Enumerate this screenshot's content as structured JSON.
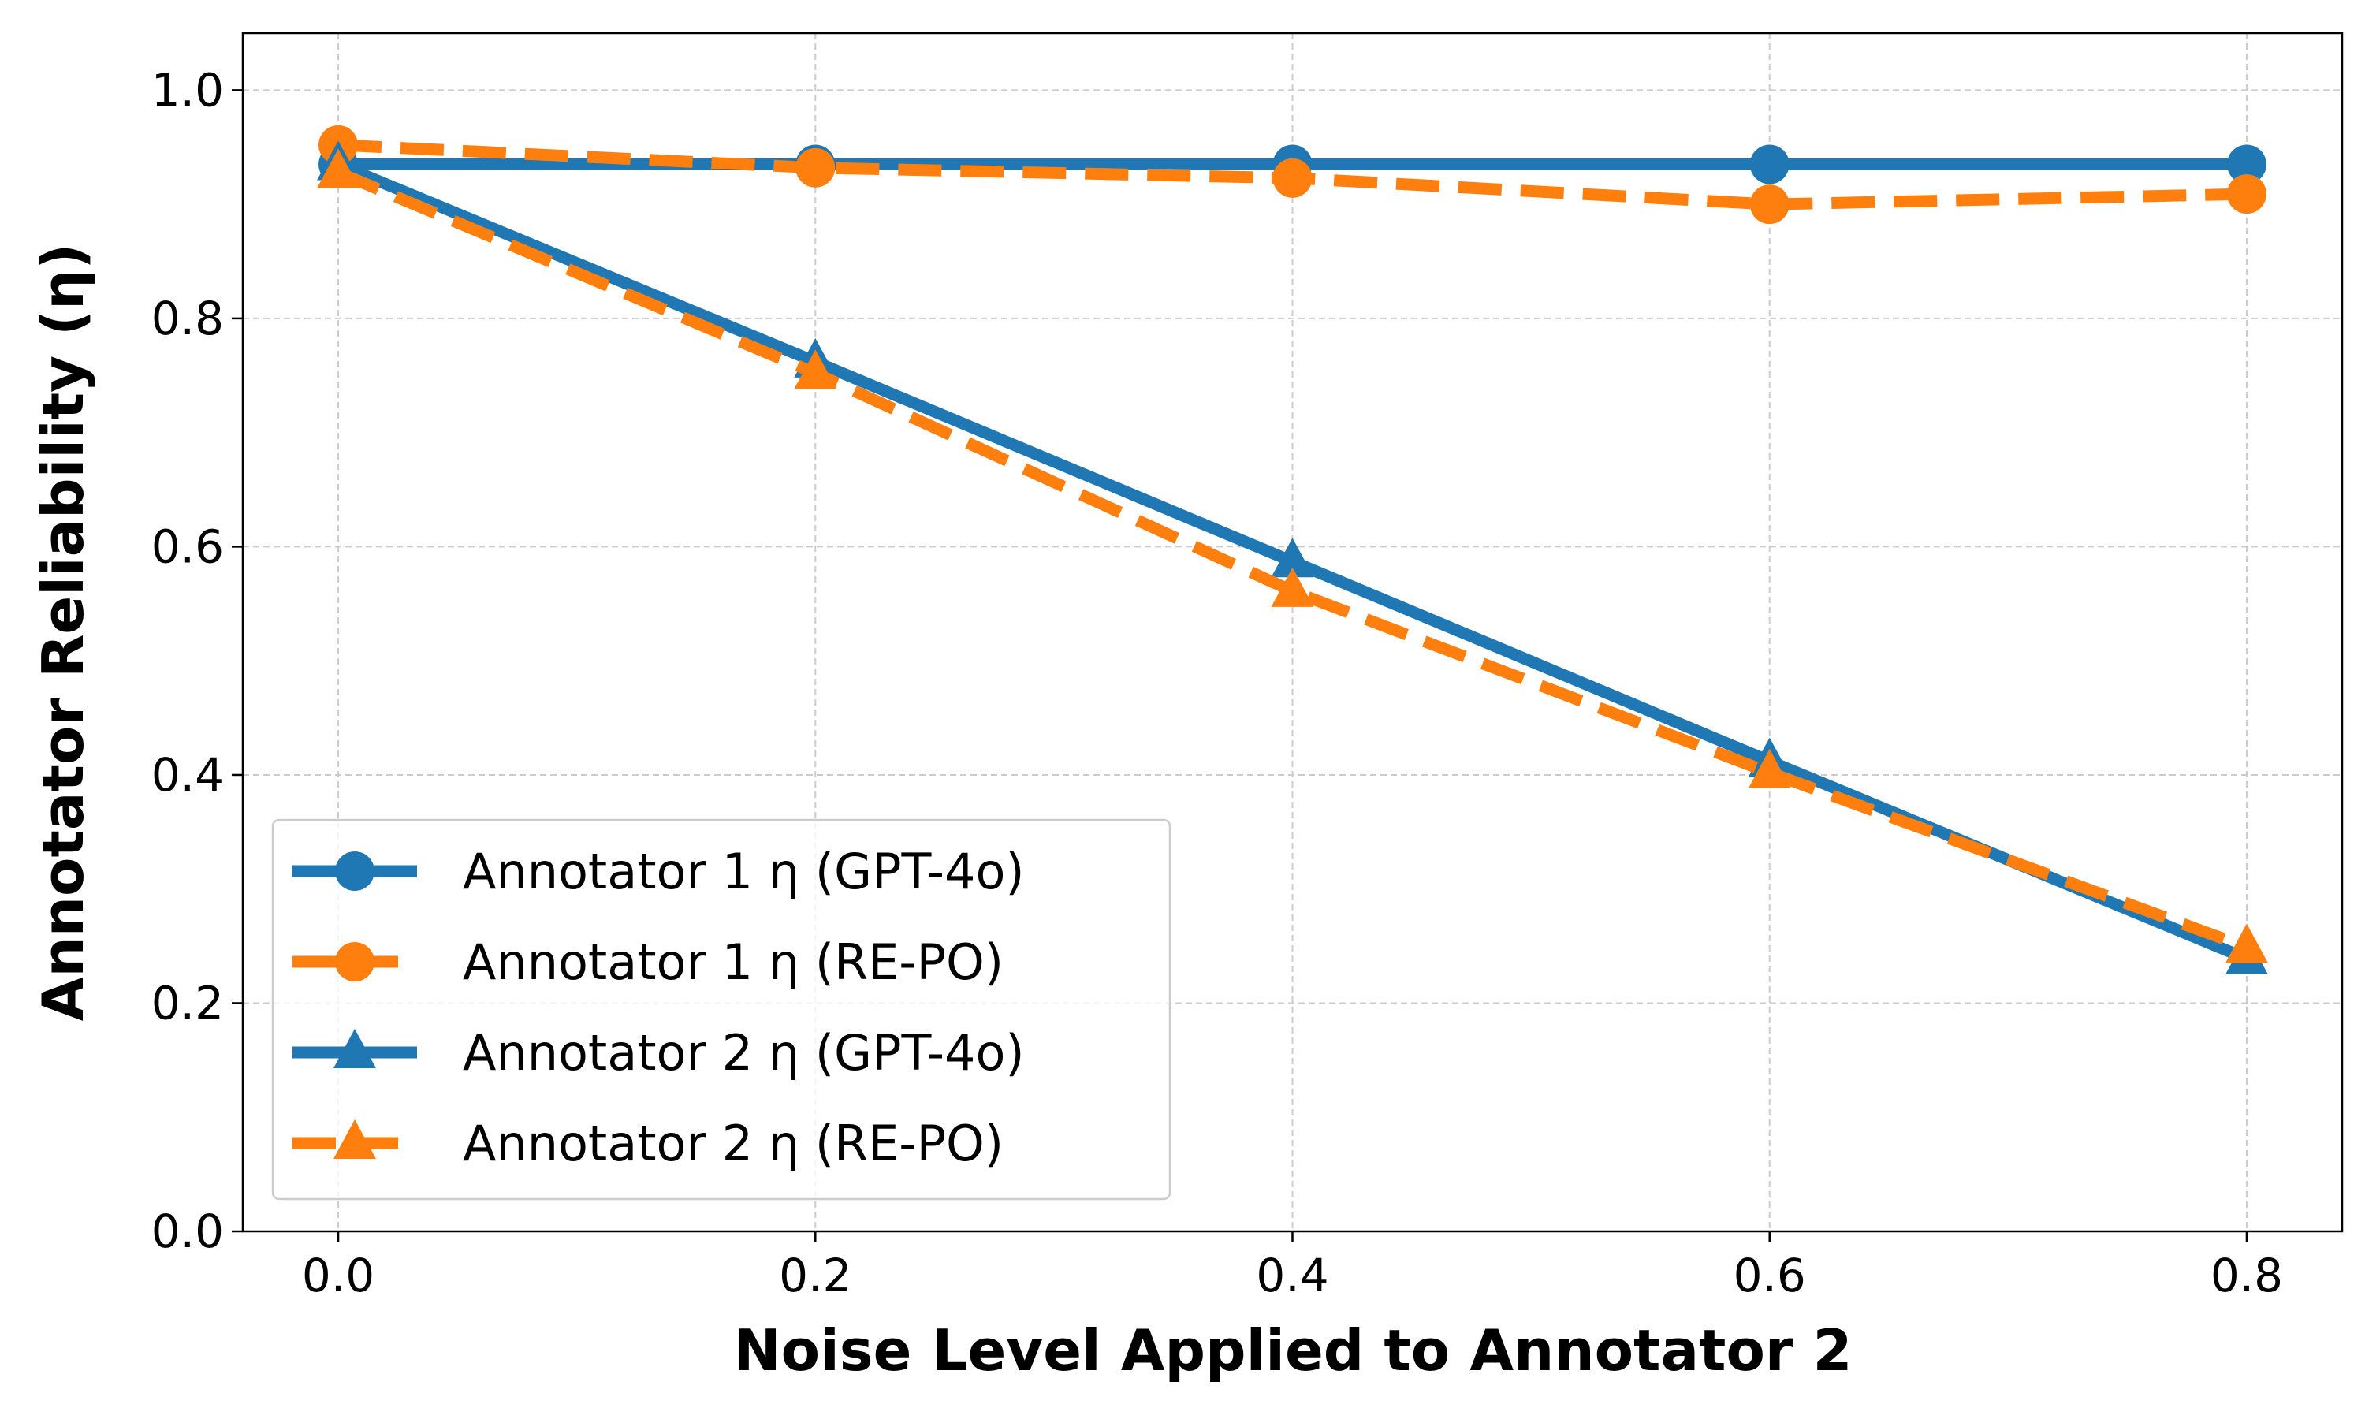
{
  "chart_data": {
    "type": "line",
    "title": "",
    "xlabel": "Noise Level Applied to Annotator 2",
    "ylabel": "Annotator Reliability (η)",
    "x": [
      0.0,
      0.2,
      0.4,
      0.6,
      0.8
    ],
    "xlim": [
      -0.04,
      0.84
    ],
    "ylim": [
      0,
      1.05
    ],
    "xticks": [
      "0.0",
      "0.2",
      "0.4",
      "0.6",
      "0.8"
    ],
    "yticks": [
      "0.0",
      "0.2",
      "0.4",
      "0.6",
      "0.8",
      "1.0"
    ],
    "grid": true,
    "legend_position": "lower-left",
    "series": [
      {
        "name": "Annotator 1 η (GPT-4o)",
        "values": [
          0.935,
          0.935,
          0.935,
          0.935,
          0.935
        ],
        "color": "#1f77b4",
        "linestyle": "solid",
        "marker": "circle"
      },
      {
        "name": "Annotator 1 η (RE-PO)",
        "values": [
          0.952,
          0.932,
          0.923,
          0.9,
          0.909
        ],
        "color": "#ff7f0e",
        "linestyle": "dashed",
        "marker": "circle"
      },
      {
        "name": "Annotator 2 η (GPT-4o)",
        "values": [
          0.935,
          0.762,
          0.587,
          0.412,
          0.239
        ],
        "color": "#1f77b4",
        "linestyle": "solid",
        "marker": "triangle"
      },
      {
        "name": "Annotator 2 η (RE-PO)",
        "values": [
          0.928,
          0.752,
          0.561,
          0.402,
          0.249
        ],
        "color": "#ff7f0e",
        "linestyle": "dashed",
        "marker": "triangle"
      }
    ]
  }
}
